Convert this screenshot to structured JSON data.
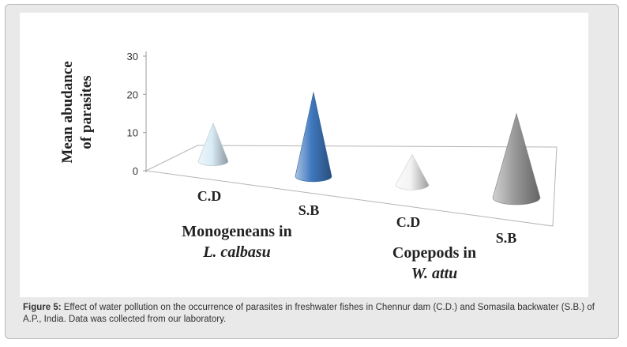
{
  "chart_data": {
    "type": "bar",
    "bar_shape": "cone-3d",
    "title": "",
    "ylabel_lines": [
      "Mean abudance",
      "of parasites"
    ],
    "ylim": [
      0,
      30
    ],
    "yticks": [
      "0",
      "10",
      "20",
      "30"
    ],
    "grid": false,
    "categories": [
      "C.D",
      "S.B",
      "C.D",
      "S.B"
    ],
    "groups": [
      {
        "label_lines": [
          "Monogeneans in",
          "L. calbasu"
        ],
        "italic_line": 1
      },
      {
        "label_lines": [
          "Copepods in",
          "W. attu"
        ],
        "italic_line": 1
      }
    ],
    "series": [
      {
        "values": [
          10,
          22,
          8,
          22
        ]
      }
    ],
    "bar_colors": [
      "#d9ecf6",
      "#3f78bd",
      "#f3f3f3",
      "#9a9a9a"
    ]
  },
  "caption": {
    "label": "Figure 5:",
    "text": " Effect of water pollution on the occurrence of parasites in freshwater fishes in Chennur dam (C.D.) and Somasila backwater (S.B.) of A.P., India. Data was collected from our laboratory."
  }
}
